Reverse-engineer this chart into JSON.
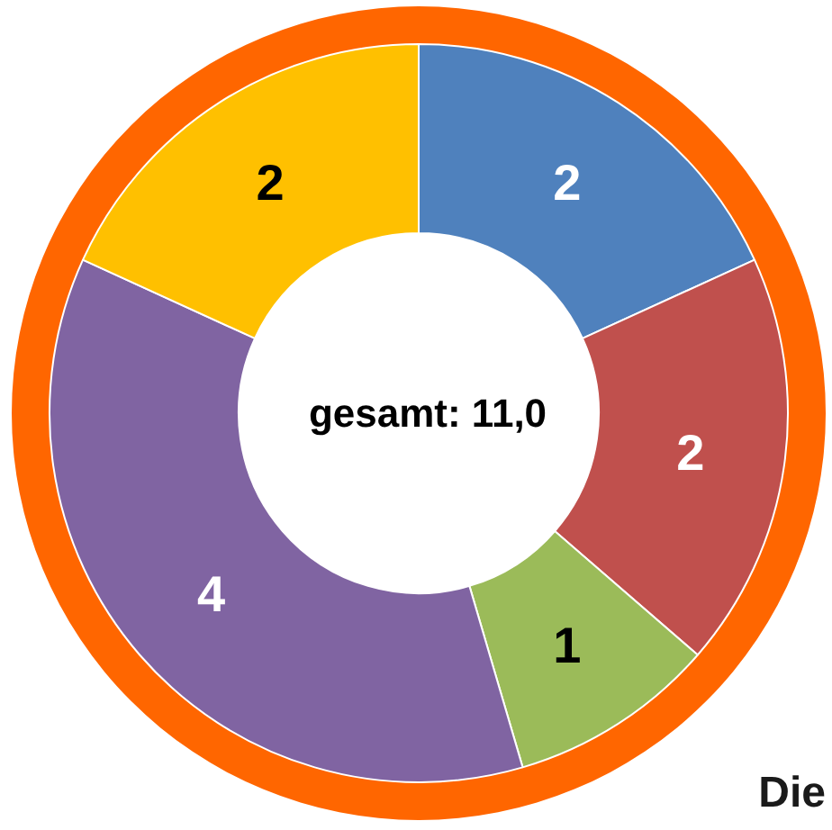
{
  "chart_data": {
    "type": "donut",
    "categories": [
      null,
      null,
      null,
      null,
      null
    ],
    "values": [
      2,
      2,
      1,
      4,
      2
    ],
    "colors": [
      "#4f81bd",
      "#c0504d",
      "#9bbb59",
      "#8064a2",
      "#ffc000"
    ],
    "data_labels": true,
    "annotations": [
      "gesamt: 11,0",
      {
        "text": "Die"
      }
    ]
  }
}
